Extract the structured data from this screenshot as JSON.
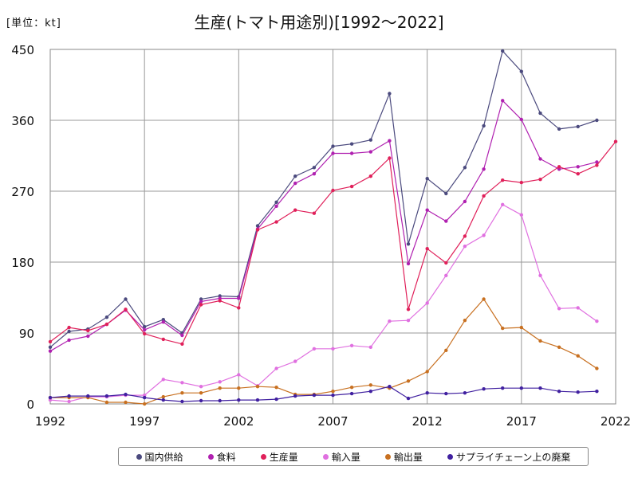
{
  "header": {
    "unit_label": "[単位：kt]",
    "title": "生産(トマト用途別)[1992〜2022]"
  },
  "chart_data": {
    "type": "line",
    "title": "生産(トマト用途別)[1992〜2022]",
    "unit": "[単位：kt]",
    "xlabel": "",
    "ylabel": "",
    "xlim": [
      1992,
      2022
    ],
    "ylim": [
      0,
      450
    ],
    "x_ticks": [
      1992,
      1997,
      2002,
      2007,
      2012,
      2017,
      2022
    ],
    "y_ticks": [
      0,
      90,
      180,
      270,
      360,
      450
    ],
    "grid": true,
    "legend_position": "bottom",
    "x": [
      1992,
      1993,
      1994,
      1995,
      1996,
      1997,
      1998,
      1999,
      2000,
      2001,
      2002,
      2003,
      2004,
      2005,
      2006,
      2007,
      2008,
      2009,
      2010,
      2011,
      2012,
      2013,
      2014,
      2015,
      2016,
      2017,
      2018,
      2019,
      2020,
      2021,
      2022
    ],
    "series": [
      {
        "name": "国内供給",
        "color": "#4b4a7e",
        "values": [
          72,
          92,
          95,
          110,
          133,
          98,
          107,
          90,
          133,
          137,
          136,
          226,
          256,
          289,
          300,
          327,
          330,
          335,
          394,
          203,
          286,
          267,
          300,
          353,
          448,
          422,
          369,
          349,
          352,
          360,
          null
        ]
      },
      {
        "name": "食料",
        "color": "#b020b0",
        "values": [
          67,
          81,
          86,
          101,
          119,
          94,
          104,
          87,
          130,
          134,
          134,
          222,
          251,
          280,
          292,
          318,
          318,
          320,
          334,
          178,
          246,
          232,
          257,
          298,
          385,
          361,
          311,
          298,
          301,
          307,
          null
        ]
      },
      {
        "name": "生産量",
        "color": "#e0205a",
        "values": [
          79,
          97,
          93,
          101,
          120,
          89,
          82,
          76,
          126,
          131,
          122,
          221,
          231,
          246,
          242,
          271,
          276,
          289,
          312,
          120,
          197,
          179,
          213,
          264,
          284,
          281,
          285,
          301,
          292,
          303,
          333
        ]
      },
      {
        "name": "輸入量",
        "color": "#e070e0",
        "values": [
          5,
          3,
          9,
          9,
          11,
          11,
          31,
          27,
          22,
          28,
          37,
          23,
          45,
          54,
          70,
          70,
          74,
          72,
          105,
          106,
          128,
          163,
          200,
          214,
          253,
          240,
          163,
          121,
          122,
          105,
          null
        ]
      },
      {
        "name": "輸出量",
        "color": "#c87020",
        "values": [
          8,
          8,
          8,
          2,
          2,
          0,
          9,
          14,
          14,
          20,
          20,
          22,
          21,
          12,
          12,
          16,
          21,
          24,
          20,
          29,
          41,
          68,
          106,
          133,
          96,
          97,
          80,
          72,
          61,
          45,
          null
        ]
      },
      {
        "name": "サプライチェーン上の廃棄",
        "color": "#4020a0",
        "values": [
          8,
          10,
          10,
          10,
          12,
          8,
          5,
          3,
          4,
          4,
          5,
          5,
          6,
          10,
          11,
          11,
          13,
          16,
          22,
          7,
          14,
          13,
          14,
          19,
          20,
          20,
          20,
          16,
          15,
          16,
          null
        ]
      }
    ]
  }
}
